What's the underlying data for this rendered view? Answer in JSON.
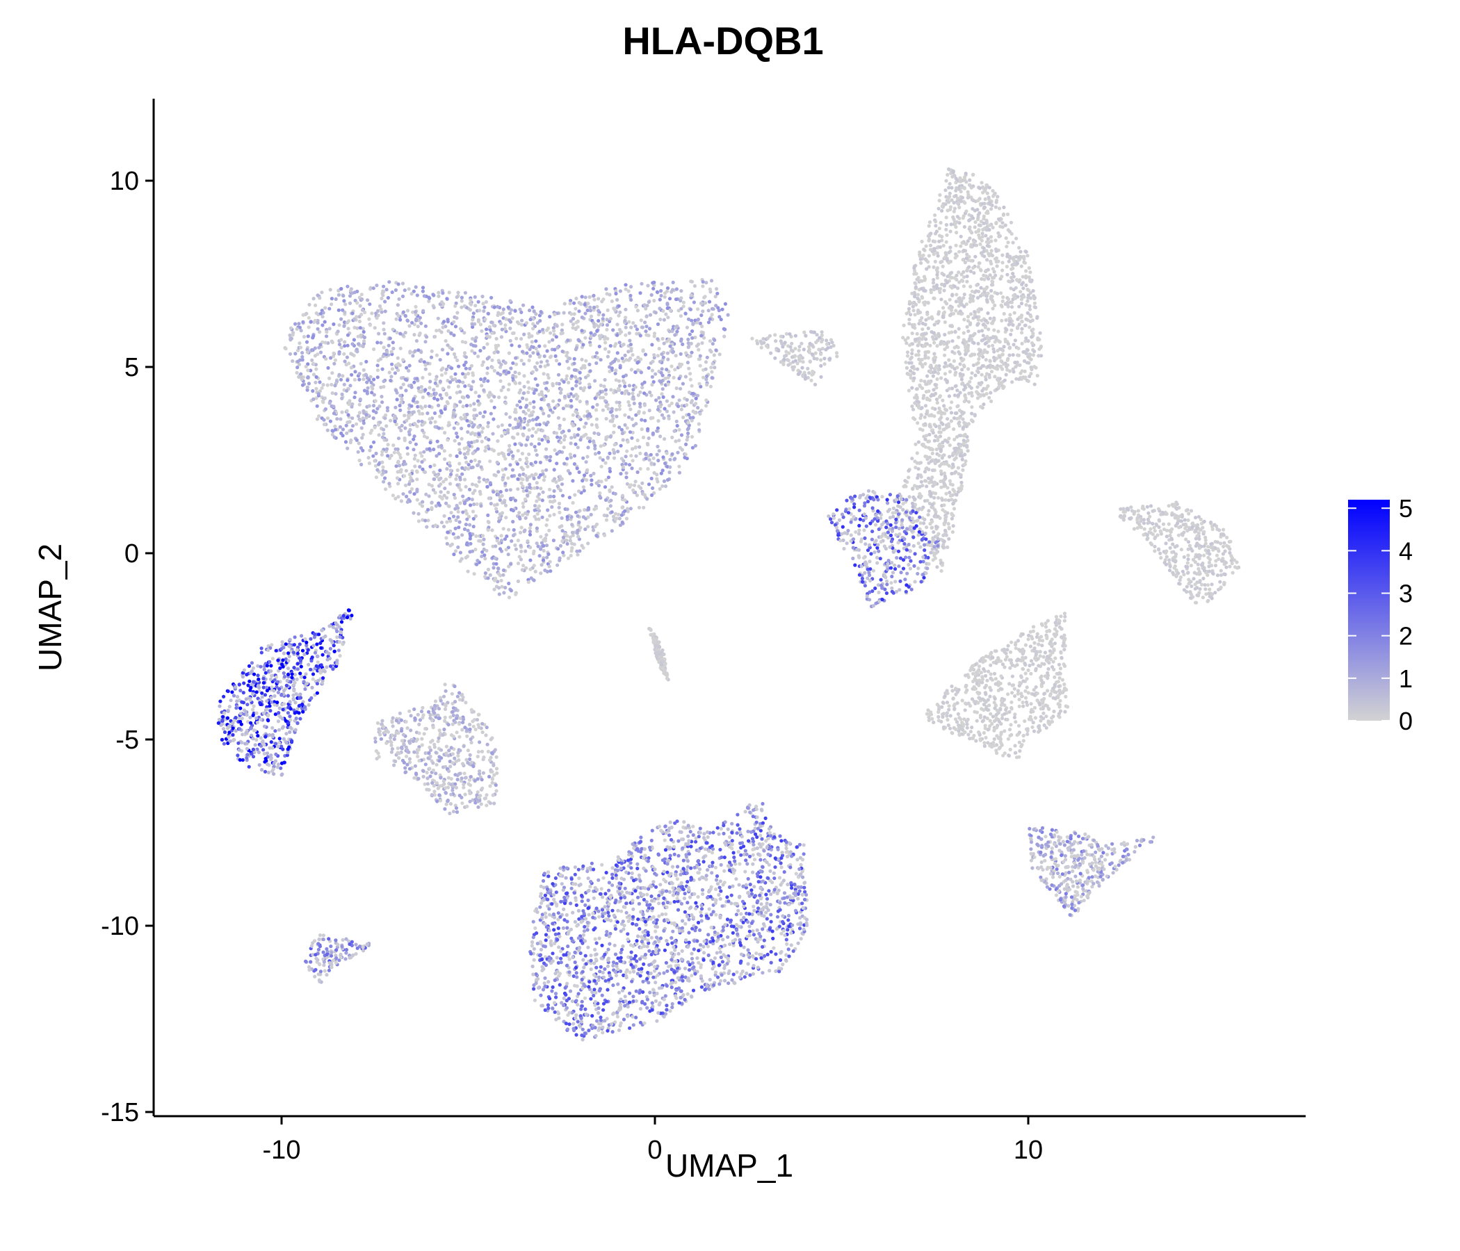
{
  "chart_data": {
    "type": "scatter",
    "title": "HLA-DQB1",
    "xlabel": "UMAP_1",
    "ylabel": "UMAP_2",
    "xlim": [
      -13.5,
      17.5
    ],
    "ylim": [
      -15.2,
      12.2
    ],
    "x_ticks": [
      -10,
      0,
      10
    ],
    "x_tick_labels": [
      "-10",
      "0",
      "10"
    ],
    "y_ticks": [
      10,
      5,
      0,
      -5,
      -10,
      -15
    ],
    "y_tick_labels": [
      "10",
      "5",
      "0",
      "-5",
      "-10",
      "-15"
    ],
    "color_scale": {
      "low": "#d3d3d3",
      "high": "#0000ff",
      "min": 0,
      "max": 5.2,
      "legend_values": [
        5,
        4,
        3,
        2,
        1,
        0
      ],
      "legend_labels": [
        "5",
        "4",
        "3",
        "2",
        "1",
        "0"
      ]
    },
    "grid": false,
    "legend_position": "right",
    "clusters": [
      {
        "name": "large top-left cluster",
        "outline": [
          [
            -10,
            5.7
          ],
          [
            -9,
            7.1
          ],
          [
            -7,
            7.3
          ],
          [
            -5,
            7.0
          ],
          [
            -3,
            6.6
          ],
          [
            -1,
            7.2
          ],
          [
            1.5,
            7.4
          ],
          [
            2,
            6.5
          ],
          [
            1.6,
            4.6
          ],
          [
            1,
            2.5
          ],
          [
            -0.5,
            1.0
          ],
          [
            -2,
            0
          ],
          [
            -4,
            -1.3
          ],
          [
            -5,
            -0.5
          ],
          [
            -7,
            1.5
          ],
          [
            -9,
            3.5
          ]
        ],
        "mean_expr": 1.0
      },
      {
        "name": "top-right upper",
        "outline": [
          [
            6.4,
            0.9
          ],
          [
            7,
            3
          ],
          [
            6.6,
            5.8
          ],
          [
            7,
            8
          ],
          [
            7.9,
            10.4
          ],
          [
            9,
            10
          ],
          [
            10,
            8
          ],
          [
            10.4,
            5.5
          ],
          [
            10.2,
            4.5
          ],
          [
            9.5,
            4.6
          ],
          [
            8.5,
            3.5
          ],
          [
            8.2,
            1.5
          ],
          [
            7.7,
            -0.6
          ],
          [
            7,
            0.5
          ]
        ],
        "mean_expr": 0.2
      },
      {
        "name": "small mid-top cluster",
        "outline": [
          [
            2.5,
            5.8
          ],
          [
            4.5,
            6.0
          ],
          [
            5.0,
            5.4
          ],
          [
            4.3,
            4.5
          ],
          [
            3.5,
            5.0
          ]
        ],
        "mean_expr": 0.3
      },
      {
        "name": "cluster below top-right",
        "outline": [
          [
            4.6,
            1.0
          ],
          [
            5.5,
            1.7
          ],
          [
            6.7,
            1.6
          ],
          [
            7.7,
            0.3
          ],
          [
            7.1,
            -1.0
          ],
          [
            6.3,
            -1.2
          ],
          [
            5.8,
            -1.5
          ],
          [
            5.5,
            -0.8
          ],
          [
            5.0,
            0.2
          ]
        ],
        "mean_expr": 2.4
      },
      {
        "name": "right cluster",
        "outline": [
          [
            12.2,
            1.2
          ],
          [
            14,
            1.4
          ],
          [
            15.3,
            0.6
          ],
          [
            15.7,
            -0.3
          ],
          [
            15,
            -1.2
          ],
          [
            14.5,
            -1.5
          ],
          [
            13.8,
            -0.5
          ],
          [
            13,
            0.5
          ]
        ],
        "mean_expr": 0.2
      },
      {
        "name": "left high-expression cluster",
        "outline": [
          [
            -11.7,
            -4
          ],
          [
            -10.5,
            -2.5
          ],
          [
            -8.8,
            -2.0
          ],
          [
            -8,
            -1.3
          ],
          [
            -8.5,
            -3
          ],
          [
            -9.5,
            -4.5
          ],
          [
            -10,
            -6
          ],
          [
            -11,
            -5.7
          ],
          [
            -11.7,
            -5
          ]
        ],
        "mean_expr": 3.6
      },
      {
        "name": "left-middle cluster",
        "outline": [
          [
            -7.5,
            -4.5
          ],
          [
            -6,
            -4
          ],
          [
            -5.5,
            -3.3
          ],
          [
            -4.2,
            -5
          ],
          [
            -4.2,
            -6.7
          ],
          [
            -5.5,
            -7.0
          ],
          [
            -6.5,
            -6
          ],
          [
            -7.5,
            -5.5
          ]
        ],
        "mean_expr": 0.8
      },
      {
        "name": "tiny center strand",
        "outline": [
          [
            -0.2,
            -1.9
          ],
          [
            0.2,
            -2.5
          ],
          [
            0.4,
            -3.5
          ],
          [
            0.1,
            -3.0
          ]
        ],
        "mean_expr": 0.2
      },
      {
        "name": "bottom large cluster",
        "outline": [
          [
            -3.0,
            -8.5
          ],
          [
            -1.5,
            -8.3
          ],
          [
            0.5,
            -7.1
          ],
          [
            1.5,
            -7.5
          ],
          [
            2.8,
            -6.5
          ],
          [
            3.2,
            -7.5
          ],
          [
            4,
            -7.8
          ],
          [
            4.1,
            -10
          ],
          [
            3.5,
            -11.2
          ],
          [
            1.5,
            -11.7
          ],
          [
            0,
            -12.6
          ],
          [
            -2,
            -13.1
          ],
          [
            -3.2,
            -12.2
          ],
          [
            -3.4,
            -10.5
          ]
        ],
        "mean_expr": 2.2
      },
      {
        "name": "small bottom-left cluster",
        "outline": [
          [
            -9.5,
            -10.8
          ],
          [
            -9,
            -10.2
          ],
          [
            -7.5,
            -10.5
          ],
          [
            -8.6,
            -11.1
          ],
          [
            -9.0,
            -11.6
          ]
        ],
        "mean_expr": 1.8
      },
      {
        "name": "mid-right cluster",
        "outline": [
          [
            7.2,
            -4.3
          ],
          [
            8.5,
            -3
          ],
          [
            10,
            -2
          ],
          [
            11,
            -1.6
          ],
          [
            11,
            -3.5
          ],
          [
            11.1,
            -4.3
          ],
          [
            10,
            -5
          ],
          [
            9.8,
            -5.8
          ],
          [
            8.5,
            -5
          ],
          [
            7.5,
            -4.7
          ]
        ],
        "mean_expr": 0.15
      },
      {
        "name": "lower-right cluster",
        "outline": [
          [
            10,
            -7.3
          ],
          [
            11.5,
            -7.5
          ],
          [
            12.3,
            -7.8
          ],
          [
            13.5,
            -7.6
          ],
          [
            12,
            -8.8
          ],
          [
            11.2,
            -9.9
          ],
          [
            10.8,
            -9.3
          ],
          [
            10.1,
            -8.5
          ]
        ],
        "mean_expr": 1.3
      }
    ]
  }
}
